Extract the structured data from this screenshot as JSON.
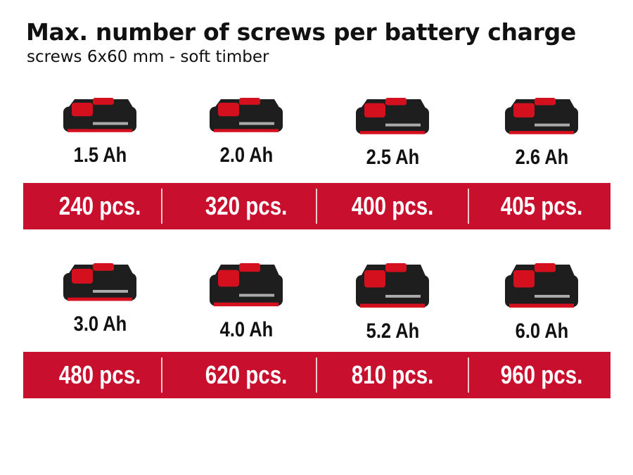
{
  "title": "Max. number of screws per battery charge",
  "subtitle": "screws 6x60 mm - soft timber",
  "colors": {
    "band": "#c8102e",
    "battery_body": "#1e1e1e",
    "battery_accent": "#d4101f"
  },
  "rows": [
    {
      "items": [
        {
          "capacity": "1.5 Ah",
          "count": "240 pcs."
        },
        {
          "capacity": "2.0 Ah",
          "count": "320 pcs."
        },
        {
          "capacity": "2.5 Ah",
          "count": "400 pcs."
        },
        {
          "capacity": "2.6 Ah",
          "count": "405 pcs."
        }
      ]
    },
    {
      "items": [
        {
          "capacity": "3.0 Ah",
          "count": "480 pcs."
        },
        {
          "capacity": "4.0 Ah",
          "count": "620 pcs."
        },
        {
          "capacity": "5.2 Ah",
          "count": "810 pcs."
        },
        {
          "capacity": "6.0 Ah",
          "count": "960 pcs."
        }
      ]
    }
  ]
}
